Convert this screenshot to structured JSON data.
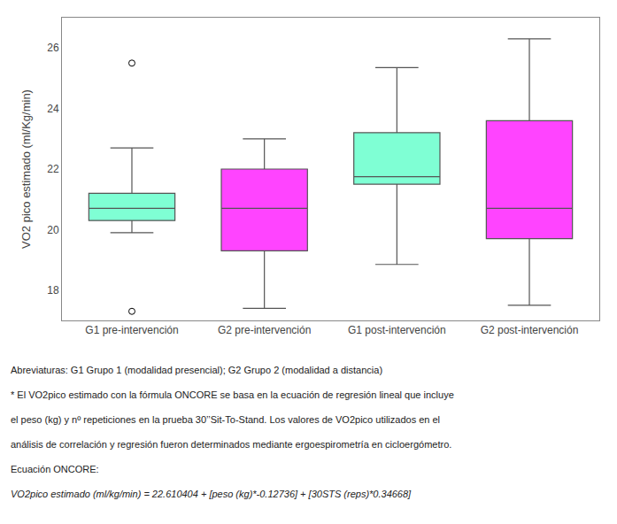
{
  "chart_data": {
    "type": "box",
    "categories": [
      "G1 pre-intervención",
      "G2 pre-intervención",
      "G1 post-intervención",
      "G2 post-intervención"
    ],
    "boxes": [
      {
        "whislo": 19.9,
        "q1": 20.3,
        "med": 20.7,
        "q3": 21.2,
        "whishi": 22.7,
        "fliers": [
          25.5,
          17.3
        ]
      },
      {
        "whislo": 17.4,
        "q1": 19.3,
        "med": 20.7,
        "q3": 22.0,
        "whishi": 23.0,
        "fliers": []
      },
      {
        "whislo": 18.85,
        "q1": 21.5,
        "med": 21.75,
        "q3": 23.2,
        "whishi": 25.35,
        "fliers": []
      },
      {
        "whislo": 17.5,
        "q1": 19.7,
        "med": 20.7,
        "q3": 23.6,
        "whishi": 26.3,
        "fliers": []
      }
    ],
    "colors": [
      "#7FFFD4",
      "#FF44FF",
      "#7FFFD4",
      "#FF44FF"
    ],
    "ylabel": "VO2 pico estimado (ml/Kg/min)",
    "ylim": [
      17.0,
      27.0
    ],
    "yticks": [
      18,
      20,
      22,
      24,
      26
    ],
    "grid": false,
    "annotations": [
      "Abreviaturas: G1 Grupo 1 (modalidad presencial); G2 Grupo 2 (modalidad a distancia)",
      "* El VO2pico estimado con la fórmula ONCORE se basa en la ecuación de regresión lineal que incluye",
      "el peso (kg) y nº repeticiones en la prueba 30’’Sit-To-Stand. Los valores de VO2pico utilizados en el",
      "análisis de correlación y regresión fueron determinados mediante ergoespirometría en cicloergómetro.",
      "Ecuación ONCORE:",
      "VO2pico estimado (ml/kg/min) = 22.610404 + [peso (kg)*-0.12736] + [30STS (reps)*0.34668]"
    ]
  }
}
